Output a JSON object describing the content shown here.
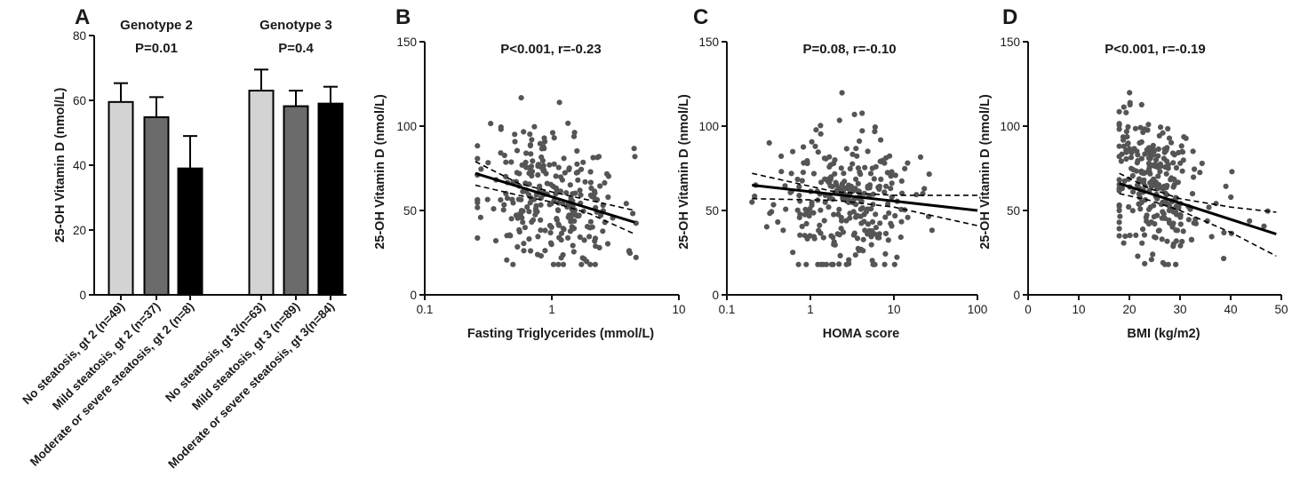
{
  "chart_data": [
    {
      "panel": "A",
      "type": "bar",
      "ylabel": "25-OH Vitamin D (nmol/L)",
      "ylim": [
        0,
        80
      ],
      "yticks": [
        0,
        20,
        40,
        60,
        80
      ],
      "groups": [
        {
          "label": "Genotype 2",
          "pvalue": "P=0.01"
        },
        {
          "label": "Genotype 3",
          "pvalue": "P=0.4"
        }
      ],
      "categories": [
        "No steatosis, gt 2 (n=49)",
        "Mild steatosis, gt 2 (n=37)",
        "Moderate or severe steatosis, gt 2  (n=8)",
        "No steatosis, gt 3(n=63)",
        "Mild steatosis, gt 3 (n=89)",
        "Moderate or severe steatosis, gt 3(n=84)"
      ],
      "values": [
        59.5,
        54.8,
        39.0,
        63.0,
        58.2,
        59.0
      ],
      "errors": [
        5.8,
        6.2,
        10.0,
        6.5,
        4.8,
        5.2
      ],
      "colors": [
        "#d3d3d3",
        "#6b6b6b",
        "#000000",
        "#d3d3d3",
        "#6b6b6b",
        "#000000"
      ]
    },
    {
      "panel": "B",
      "type": "scatter",
      "annotation": "P<0.001, r=-0.23",
      "xlabel": "Fasting Triglycerides (mmol/L)",
      "ylabel": "25-OH Vitamin D (nmol/L)",
      "xscale": "log",
      "xlim": [
        0.1,
        10
      ],
      "xticks": [
        "0.1",
        "1",
        "10"
      ],
      "ylim": [
        0,
        150
      ],
      "yticks": [
        0,
        50,
        100,
        150
      ],
      "x_range": [
        0.3,
        5.0
      ],
      "regression": {
        "x": [
          0.25,
          4.5
        ],
        "y": [
          72,
          43
        ]
      },
      "ci_upper": {
        "x": [
          0.25,
          0.55,
          1.0,
          2.0,
          4.5
        ],
        "y": [
          79,
          66,
          61,
          56,
          50
        ]
      },
      "ci_lower": {
        "x": [
          0.25,
          0.55,
          1.0,
          2.0,
          4.5
        ],
        "y": [
          65,
          59,
          55,
          48,
          36
        ]
      },
      "point_color": "#555555",
      "n_points": 281
    },
    {
      "panel": "C",
      "type": "scatter",
      "annotation": "P=0.08, r=-0.10",
      "xlabel": "HOMA score",
      "ylabel": "25-OH Vitamin D (nmol/L)",
      "xscale": "log",
      "xlim": [
        0.1,
        100
      ],
      "xticks": [
        "0.1",
        "1",
        "10",
        "100"
      ],
      "ylim": [
        0,
        150
      ],
      "yticks": [
        0,
        50,
        100,
        150
      ],
      "x_range": [
        0.3,
        60
      ],
      "regression": {
        "x": [
          0.2,
          100
        ],
        "y": [
          65,
          50
        ]
      },
      "ci_upper": {
        "x": [
          0.2,
          2.0,
          10,
          100
        ],
        "y": [
          72,
          61,
          59,
          59
        ]
      },
      "ci_lower": {
        "x": [
          0.2,
          2.0,
          10,
          100
        ],
        "y": [
          57,
          56,
          52,
          41
        ]
      },
      "point_color": "#555555",
      "n_points": 281
    },
    {
      "panel": "D",
      "type": "scatter",
      "annotation": "P<0.001, r=-0.19",
      "xlabel": "BMI (kg/m2)",
      "ylabel": "25-OH Vitamin D (nmol/L)",
      "xscale": "linear",
      "xlim": [
        0,
        50
      ],
      "xticks": [
        0,
        10,
        20,
        30,
        40,
        50
      ],
      "ylim": [
        0,
        150
      ],
      "yticks": [
        0,
        50,
        100,
        150
      ],
      "x_range": [
        18,
        48
      ],
      "regression": {
        "x": [
          18,
          49
        ],
        "y": [
          66,
          36
        ]
      },
      "ci_upper": {
        "x": [
          18,
          24,
          30,
          40,
          49
        ],
        "y": [
          72,
          63,
          57,
          52,
          49
        ]
      },
      "ci_lower": {
        "x": [
          18,
          24,
          30,
          40,
          49
        ],
        "y": [
          60,
          56,
          50,
          37,
          23
        ]
      },
      "point_color": "#555555",
      "n_points": 281
    }
  ],
  "panels": {
    "A": {
      "letter": "A"
    },
    "B": {
      "letter": "B"
    },
    "C": {
      "letter": "C"
    },
    "D": {
      "letter": "D"
    }
  }
}
